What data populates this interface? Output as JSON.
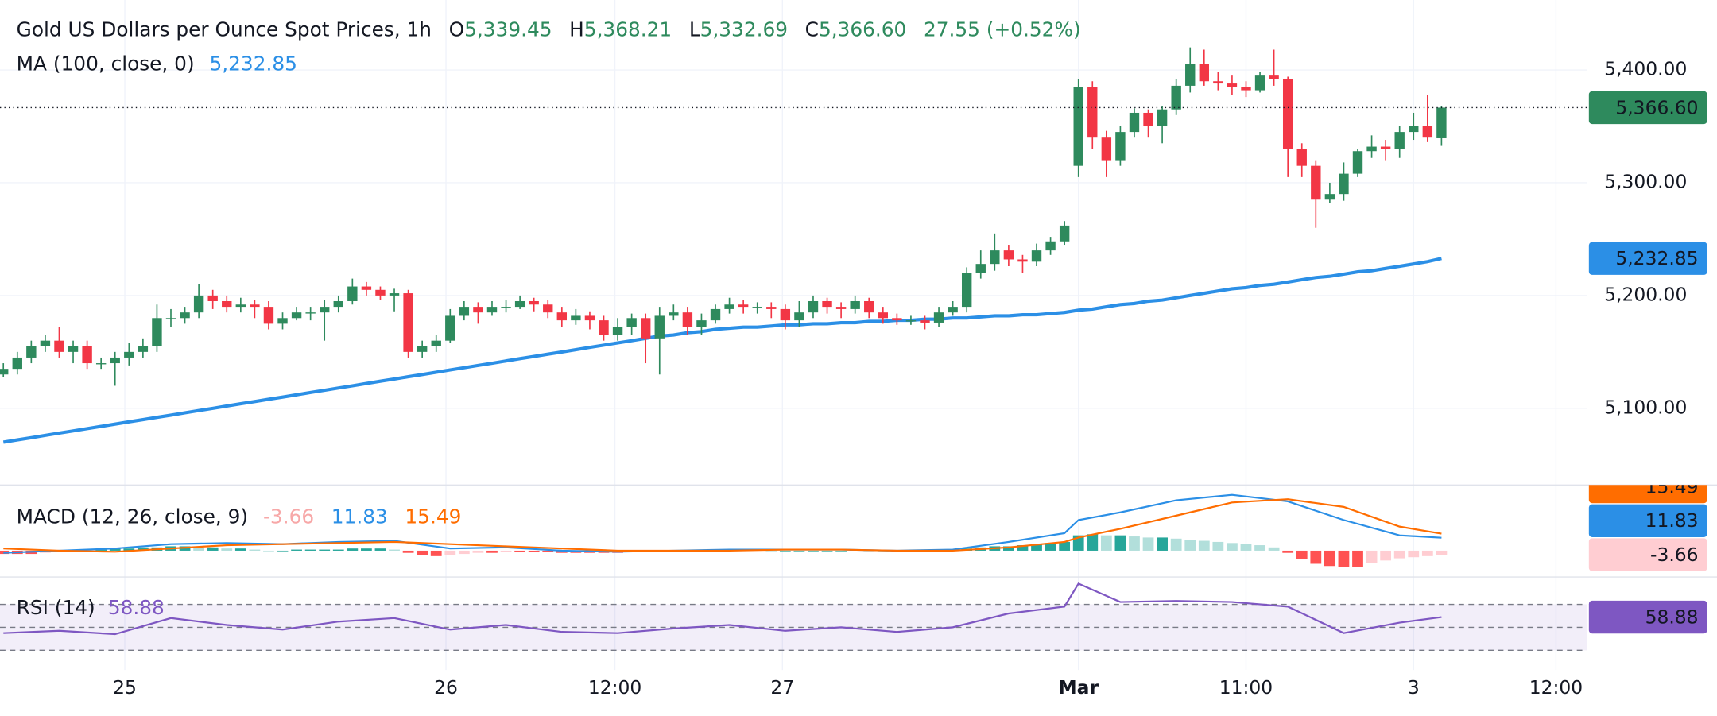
{
  "chart_data": {
    "type": "candlestick",
    "title": "Gold US Dollars per Ounce Spot Prices, 1h",
    "ohlc": [
      {
        "key": "O",
        "value": 5339.45,
        "label": "5,339.45"
      },
      {
        "key": "H",
        "value": 5368.21,
        "label": "5,368.21"
      },
      {
        "key": "L",
        "value": 5332.69,
        "label": "5,332.69"
      },
      {
        "key": "C",
        "value": 5366.6,
        "label": "5,366.60"
      }
    ],
    "change": {
      "value": 27.55,
      "label": "27.55 (+0.52%)"
    },
    "up_color": "#2e8a5d",
    "down_color": "#f23645",
    "xlim": [
      -0.24,
      113.4
    ],
    "xticks": [
      {
        "value": 8.7,
        "label": "25"
      },
      {
        "value": 31.7,
        "label": "26"
      },
      {
        "value": 43.8,
        "label": "12:00"
      },
      {
        "value": 55.8,
        "label": "27"
      },
      {
        "value": 77,
        "label": "Mar"
      },
      {
        "value": 89,
        "label": "11:00"
      },
      {
        "value": 101,
        "label": "3"
      },
      {
        "value": 111.2,
        "label": "12:00"
      }
    ],
    "ylim": [
      5033,
      5462
    ],
    "yticks": [
      {
        "value": 5100,
        "label": "5,100.00"
      },
      {
        "value": 5200,
        "label": "5,200.00"
      },
      {
        "value": 5300,
        "label": "5,300.00"
      },
      {
        "value": 5400,
        "label": "5,400.00"
      }
    ],
    "grid": true,
    "open": [
      5130,
      5135,
      5145,
      5155,
      5160,
      5150,
      5155,
      5140,
      5140,
      5145,
      5150,
      5155,
      5180,
      5180,
      5185,
      5200,
      5195,
      5190,
      5192,
      5190,
      5175,
      5180,
      5185,
      5185,
      5190,
      5195,
      5208,
      5205,
      5200,
      5202,
      5150,
      5155,
      5160,
      5182,
      5190,
      5185,
      5190,
      5190,
      5195,
      5192,
      5185,
      5178,
      5182,
      5178,
      5165,
      5172,
      5180,
      5162,
      5182,
      5185,
      5172,
      5178,
      5188,
      5192,
      5190,
      5190,
      5188,
      5178,
      5185,
      5195,
      5190,
      5188,
      5195,
      5185,
      5180,
      5178,
      5178,
      5176,
      5185,
      5190,
      5220,
      5228,
      5240,
      5232,
      5230,
      5240,
      5248,
      5315,
      5385,
      5340,
      5320,
      5345,
      5362,
      5350,
      5365,
      5386,
      5405,
      5390,
      5388,
      5385,
      5382,
      5395,
      5392,
      5330,
      5315,
      5285,
      5290,
      5308,
      5328,
      5332,
      5330,
      5345,
      5350,
      5339.45
    ],
    "high": [
      5140,
      5150,
      5160,
      5165,
      5172,
      5160,
      5160,
      5145,
      5150,
      5158,
      5162,
      5192,
      5188,
      5190,
      5210,
      5205,
      5200,
      5198,
      5196,
      5195,
      5185,
      5190,
      5190,
      5196,
      5200,
      5215,
      5212,
      5208,
      5206,
      5205,
      5160,
      5165,
      5188,
      5195,
      5194,
      5195,
      5196,
      5200,
      5198,
      5196,
      5190,
      5188,
      5186,
      5182,
      5180,
      5184,
      5184,
      5190,
      5192,
      5190,
      5184,
      5192,
      5198,
      5196,
      5194,
      5194,
      5192,
      5195,
      5200,
      5198,
      5194,
      5200,
      5198,
      5190,
      5184,
      5182,
      5182,
      5190,
      5195,
      5225,
      5240,
      5255,
      5245,
      5236,
      5246,
      5252,
      5266,
      5392,
      5390,
      5346,
      5350,
      5366,
      5365,
      5368,
      5392,
      5420,
      5418,
      5398,
      5395,
      5390,
      5398,
      5418,
      5394,
      5335,
      5320,
      5300,
      5318,
      5330,
      5342,
      5338,
      5350,
      5362,
      5378,
      5368.21
    ],
    "low": [
      5128,
      5130,
      5140,
      5150,
      5145,
      5140,
      5135,
      5135,
      5120,
      5138,
      5145,
      5150,
      5172,
      5175,
      5180,
      5188,
      5185,
      5185,
      5180,
      5170,
      5170,
      5178,
      5178,
      5160,
      5185,
      5192,
      5200,
      5196,
      5186,
      5145,
      5145,
      5150,
      5158,
      5178,
      5175,
      5182,
      5185,
      5188,
      5186,
      5180,
      5172,
      5174,
      5170,
      5160,
      5160,
      5165,
      5140,
      5130,
      5178,
      5165,
      5165,
      5175,
      5184,
      5184,
      5184,
      5180,
      5170,
      5172,
      5180,
      5184,
      5180,
      5184,
      5180,
      5175,
      5174,
      5174,
      5170,
      5172,
      5182,
      5185,
      5215,
      5222,
      5226,
      5220,
      5226,
      5236,
      5245,
      5305,
      5330,
      5305,
      5315,
      5340,
      5340,
      5335,
      5360,
      5380,
      5386,
      5382,
      5378,
      5376,
      5380,
      5386,
      5305,
      5305,
      5260,
      5282,
      5284,
      5305,
      5322,
      5320,
      5322,
      5338,
      5336,
      5332.69
    ],
    "close": [
      5135,
      5145,
      5155,
      5160,
      5150,
      5155,
      5140,
      5140,
      5145,
      5150,
      5155,
      5180,
      5180,
      5185,
      5200,
      5195,
      5190,
      5192,
      5190,
      5175,
      5180,
      5185,
      5185,
      5190,
      5195,
      5208,
      5205,
      5200,
      5202,
      5150,
      5155,
      5160,
      5182,
      5190,
      5185,
      5190,
      5190,
      5195,
      5192,
      5185,
      5178,
      5182,
      5178,
      5165,
      5172,
      5180,
      5162,
      5182,
      5185,
      5172,
      5178,
      5188,
      5192,
      5190,
      5190,
      5188,
      5178,
      5185,
      5195,
      5190,
      5188,
      5195,
      5185,
      5180,
      5178,
      5178,
      5176,
      5185,
      5190,
      5220,
      5228,
      5240,
      5232,
      5230,
      5240,
      5248,
      5262,
      5385,
      5340,
      5320,
      5345,
      5362,
      5350,
      5365,
      5386,
      5405,
      5390,
      5388,
      5385,
      5382,
      5395,
      5392,
      5330,
      5315,
      5285,
      5290,
      5308,
      5328,
      5332,
      5330,
      5345,
      5350,
      5340,
      5366.6
    ],
    "last_price": {
      "value": 5366.6,
      "label": "5,366.60"
    },
    "ma": {
      "label": "MA (100, close, 0)",
      "value_label": "5,232.85",
      "color": "#2b8fe6",
      "values": [
        5070,
        5072,
        5074,
        5076,
        5078,
        5080,
        5082,
        5084,
        5086,
        5088,
        5090,
        5092,
        5094,
        5096,
        5098,
        5100,
        5102,
        5104,
        5106,
        5108,
        5110,
        5112,
        5114,
        5116,
        5118,
        5120,
        5122,
        5124,
        5126,
        5128,
        5130,
        5132,
        5134,
        5136,
        5138,
        5140,
        5142,
        5144,
        5146,
        5148,
        5150,
        5152,
        5154,
        5156,
        5158,
        5160,
        5162,
        5164,
        5165,
        5167,
        5168,
        5170,
        5171,
        5172,
        5172,
        5173,
        5174,
        5174,
        5175,
        5175,
        5176,
        5176,
        5177,
        5177,
        5178,
        5178,
        5179,
        5179,
        5180,
        5180,
        5181,
        5182,
        5182,
        5183,
        5183,
        5184,
        5185,
        5187,
        5188,
        5190,
        5192,
        5193,
        5195,
        5196,
        5198,
        5200,
        5202,
        5204,
        5206,
        5207,
        5209,
        5210,
        5212,
        5214,
        5216,
        5217,
        5219,
        5221,
        5222,
        5224,
        5226,
        5228,
        5230,
        5232.85
      ]
    },
    "macd": {
      "label": "MACD (12, 26, close, 9)",
      "ylim": [
        -24,
        60
      ],
      "x": [
        0,
        4,
        8,
        12,
        16,
        20,
        24,
        28,
        32,
        36,
        40,
        44,
        48,
        52,
        56,
        60,
        64,
        68,
        72,
        76,
        77,
        80,
        84,
        88,
        92,
        96,
        100,
        103
      ],
      "macd_line": {
        "color": "#2b8fe6",
        "value_label": "11.83",
        "values": [
          -2,
          0,
          2,
          6,
          7,
          6,
          8,
          9,
          2,
          3,
          0,
          -1,
          0,
          1,
          1,
          1,
          0,
          1,
          8,
          16,
          28,
          35,
          46,
          51,
          45,
          28,
          14,
          11.83
        ]
      },
      "signal_line": {
        "color": "#ff6d00",
        "value_label": "15.49",
        "values": [
          2,
          0,
          -1,
          2,
          5,
          6,
          7,
          8,
          6,
          4,
          2,
          0,
          0,
          0,
          1,
          1,
          0,
          0,
          3,
          8,
          12,
          20,
          32,
          44,
          47,
          40,
          22,
          15.49
        ]
      },
      "histogram": {
        "value_label": "-3.66",
        "colors": [
          "#26a69a",
          "#b2dfdb",
          "#ff5252",
          "#ffcdd2"
        ],
        "values": [
          -3,
          -3,
          -3,
          -2,
          -1,
          -1,
          0,
          1,
          2,
          2,
          3,
          3,
          4,
          4,
          3,
          3,
          2,
          2,
          1,
          0,
          0,
          1,
          1,
          1,
          1,
          2,
          2,
          2,
          1,
          -2,
          -4,
          -5,
          -4,
          -3,
          -2,
          -2,
          -1,
          -1,
          -1,
          -1,
          -2,
          -2,
          -2,
          -2,
          -2,
          -1,
          -1,
          0,
          0,
          0,
          0,
          1,
          1,
          1,
          1,
          0,
          0,
          0,
          0,
          0,
          0,
          1,
          0,
          0,
          -1,
          -1,
          -1,
          0,
          1,
          2,
          3,
          4,
          4,
          5,
          6,
          7,
          8,
          14,
          15,
          14,
          14,
          13,
          12,
          12,
          11,
          10,
          9,
          8,
          7,
          6,
          5,
          3,
          -2,
          -8,
          -12,
          -14,
          -15,
          -15,
          -11,
          -9,
          -7,
          -6,
          -5,
          -3.66
        ]
      }
    },
    "rsi": {
      "label": "RSI (14)",
      "value_label": "58.88",
      "color": "#7e57c2",
      "ylim": [
        12.9,
        92.9
      ],
      "levels": [
        70,
        50,
        30
      ],
      "x": [
        0,
        4,
        8,
        12,
        16,
        20,
        24,
        28,
        32,
        36,
        40,
        44,
        48,
        52,
        56,
        60,
        64,
        68,
        72,
        76,
        77,
        80,
        84,
        88,
        92,
        96,
        100,
        103
      ],
      "values": [
        45,
        47,
        44,
        58,
        52,
        48,
        55,
        58,
        48,
        52,
        46,
        45,
        49,
        52,
        47,
        50,
        46,
        50,
        62,
        68,
        88,
        72,
        73,
        72,
        68,
        45,
        54,
        58.88
      ]
    }
  }
}
